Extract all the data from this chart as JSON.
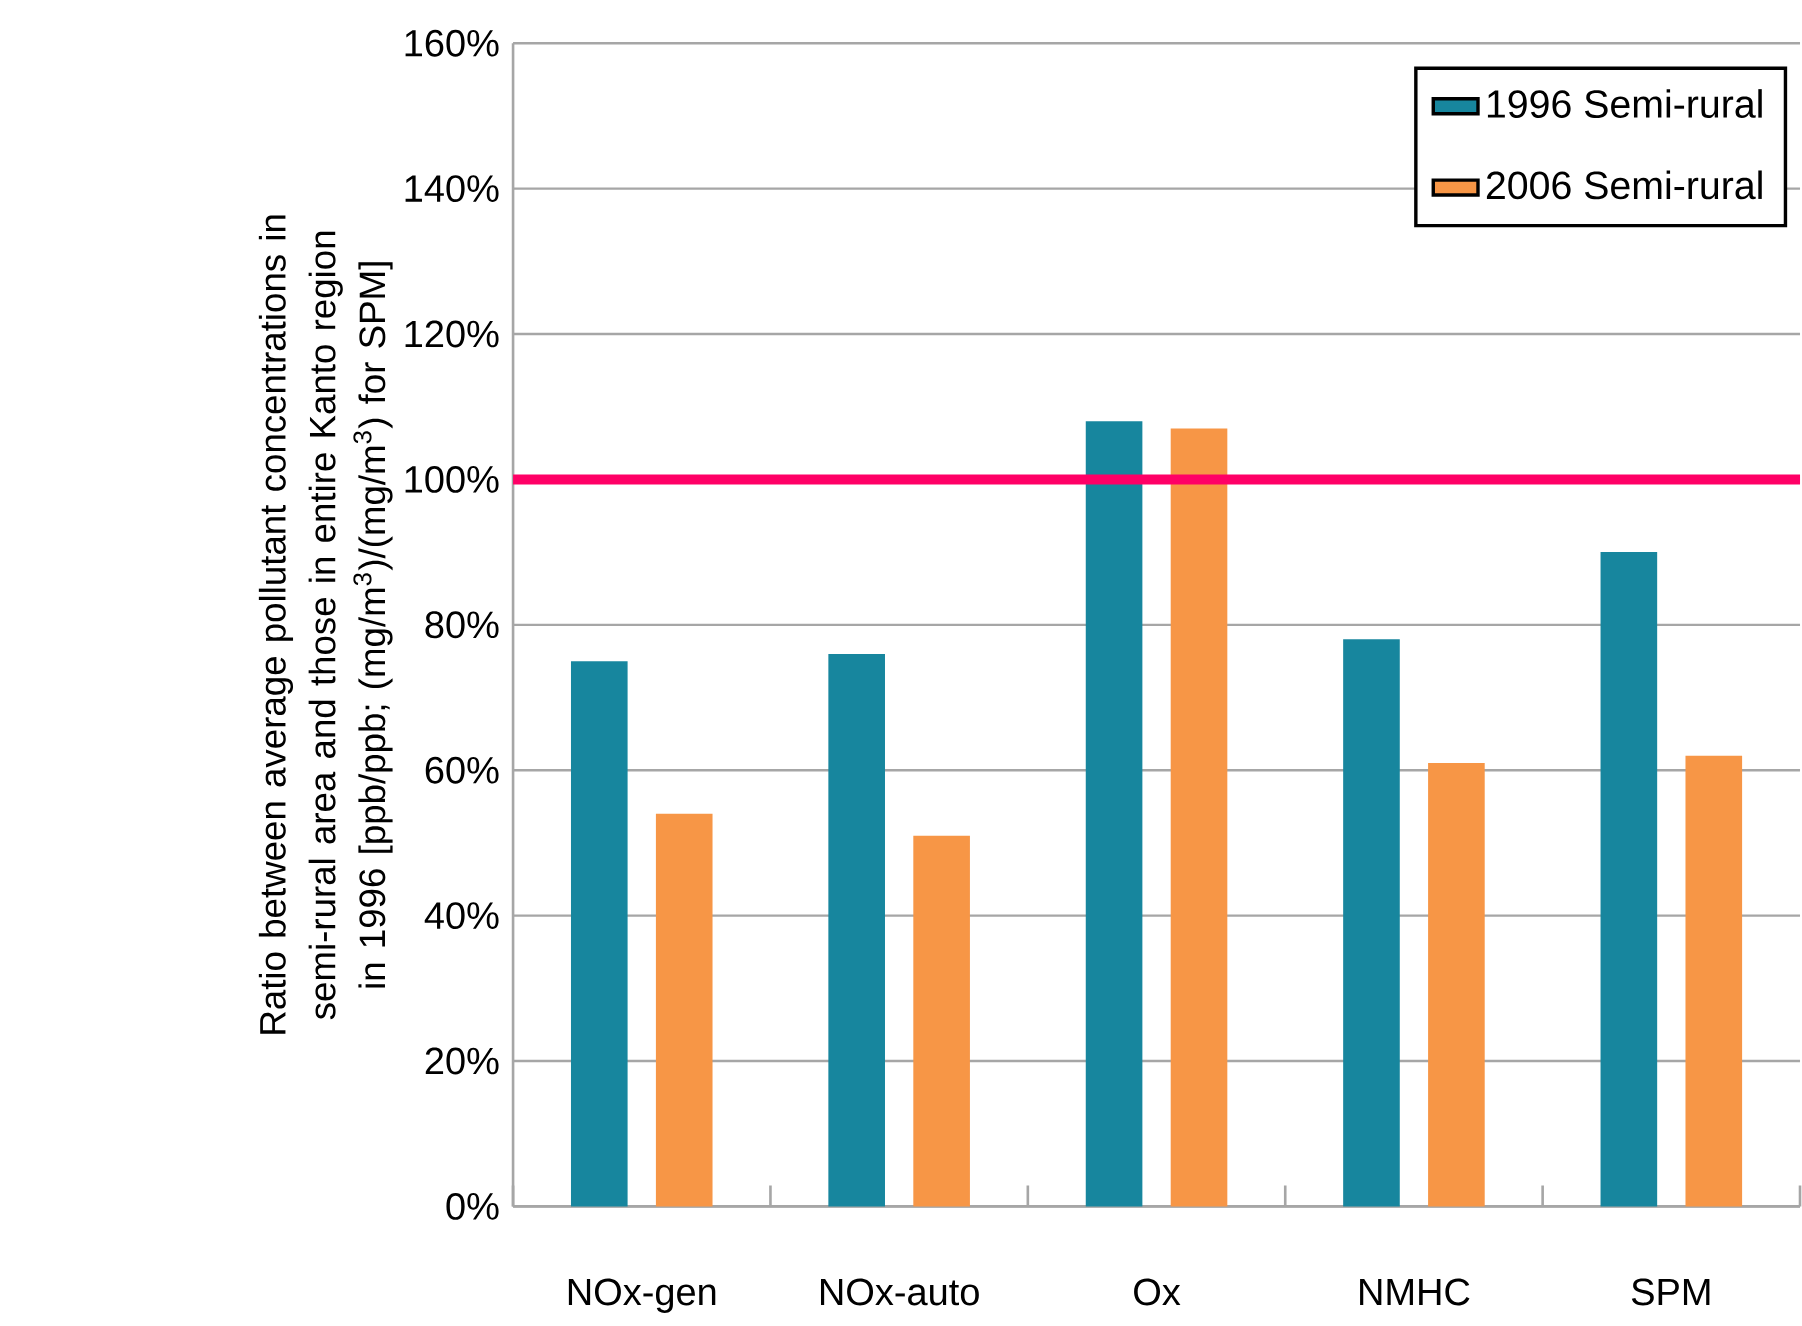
{
  "chart_data": {
    "type": "bar",
    "categories": [
      "NOx-gen",
      "NOx-auto",
      "Ox",
      "NMHC",
      "SPM"
    ],
    "series": [
      {
        "name": "1996 Semi-rural",
        "color": "#17869e",
        "values": [
          75,
          76,
          108,
          78,
          90
        ]
      },
      {
        "name": "2006 Semi-rural",
        "color": "#f79646",
        "values": [
          54,
          51,
          107,
          61,
          62
        ]
      }
    ],
    "ylabel": "Ratio between average pollutant concentrations in semi-rural area and those in entire Kanto region in 1996 [ppb/ppb; (mg/m$^{3}$)/(mg/m$^{3}$) for SPM]",
    "ylim": [
      0,
      160
    ],
    "yticks": [
      {
        "value": 0,
        "label": "0%"
      },
      {
        "value": 20,
        "label": "20%"
      },
      {
        "value": 40,
        "label": "40%"
      },
      {
        "value": 60,
        "label": "60%"
      },
      {
        "value": 80,
        "label": "80%"
      },
      {
        "value": 100,
        "label": "100%"
      },
      {
        "value": 120,
        "label": "120%"
      },
      {
        "value": 140,
        "label": "140%"
      },
      {
        "value": 160,
        "label": "160%"
      }
    ],
    "ref_lines": [
      {
        "axis": "y",
        "value": 100,
        "color": "#ff0066"
      }
    ],
    "grid": "y",
    "legend": "top right"
  }
}
